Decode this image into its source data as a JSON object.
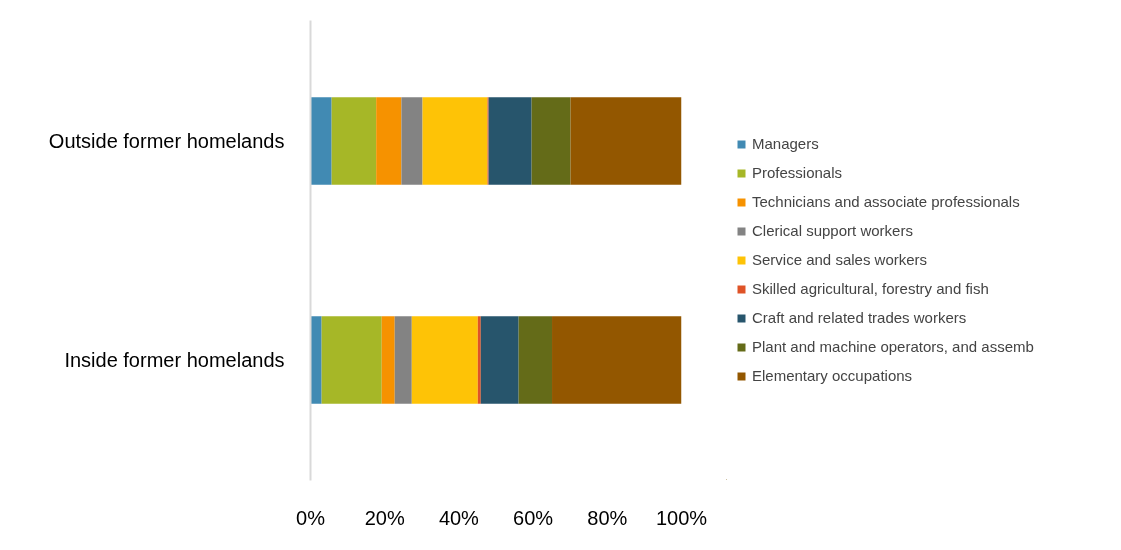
{
  "chart_data": {
    "type": "bar",
    "orientation": "horizontal",
    "stacked": true,
    "categories": [
      "Outside former homelands",
      "Inside former homelands"
    ],
    "series": [
      {
        "name": "Managers",
        "color": "#418ab3",
        "values": [
          0.057,
          0.03
        ]
      },
      {
        "name": "Professionals",
        "color": "#a6b727",
        "values": [
          0.12,
          0.162
        ]
      },
      {
        "name": "Technicians and associate professionals",
        "color": "#f69200",
        "values": [
          0.068,
          0.035
        ]
      },
      {
        "name": "Clerical support workers",
        "color": "#838383",
        "values": [
          0.057,
          0.046
        ]
      },
      {
        "name": "Service and sales workers",
        "color": "#fec306",
        "values": [
          0.175,
          0.178
        ]
      },
      {
        "name": "Skilled agricultural, forestry and fish",
        "color": "#df5327",
        "values": [
          0.003,
          0.008
        ]
      },
      {
        "name": "Craft and related trades workers",
        "color": "#27556c",
        "values": [
          0.116,
          0.102
        ]
      },
      {
        "name": "Plant and machine operators, and assemb",
        "color": "#646b18",
        "values": [
          0.105,
          0.09
        ]
      },
      {
        "name": "Elementary occupations",
        "color": "#935700",
        "values": [
          0.299,
          0.349
        ]
      }
    ],
    "xlim": [
      0,
      1
    ],
    "xticks": [
      {
        "value": 0,
        "label": "0%"
      },
      {
        "value": 0.2,
        "label": "20%"
      },
      {
        "value": 0.4,
        "label": "40%"
      },
      {
        "value": 0.6,
        "label": "60%"
      },
      {
        "value": 0.8,
        "label": "80%"
      },
      {
        "value": 1,
        "label": "100%"
      }
    ],
    "grid": false,
    "legend": "right"
  }
}
